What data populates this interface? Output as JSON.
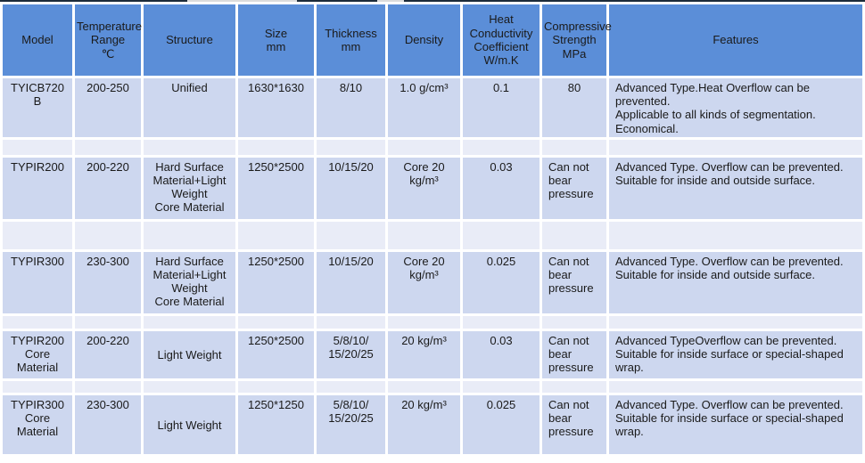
{
  "colors": {
    "header_bg": "#5b8ed8",
    "row_bg": "#cdd7ef",
    "band_bg": "#e9ecf7",
    "grid": "#ffffff",
    "text": "#1a1a1a",
    "top_line": "#1c2b3a"
  },
  "table": {
    "columns": [
      {
        "id": "model",
        "label": "Model"
      },
      {
        "id": "temperature-range",
        "label": "Temperature\nRange\n℃"
      },
      {
        "id": "structure",
        "label": "Structure"
      },
      {
        "id": "size",
        "label": "Size\nmm"
      },
      {
        "id": "thickness",
        "label": "Thickness\nmm"
      },
      {
        "id": "density",
        "label": "Density"
      },
      {
        "id": "heat-conductivity",
        "label": "Heat\nConductivity\nCoefficient\nW/m.K"
      },
      {
        "id": "compressive-strength",
        "label": "Compressive\nStrength\nMPa"
      },
      {
        "id": "features",
        "label": "Features"
      }
    ],
    "rows": [
      {
        "cells": [
          "TYICB720\nB",
          "200-250",
          "Unified",
          "1630*1630",
          "8/10",
          "1.0 g/cm³",
          "0.1",
          "80",
          "Advanced Type.Heat Overflow can be\nprevented.\nApplicable to all kinds of segmentation.\nEconomical."
        ]
      },
      {
        "cells": [
          "TYPIR200",
          "200-220",
          "Hard Surface\nMaterial+Light\nWeight\nCore Material",
          "1250*2500",
          "10/15/20",
          "Core 20\nkg/m³",
          "0.03",
          "Can not\nbear\npressure",
          "Advanced Type. Overflow can be prevented.\nSuitable for inside and outside surface."
        ]
      },
      {
        "cells": [
          "TYPIR300",
          "230-300",
          "Hard Surface\nMaterial+Light\nWeight\nCore Material",
          "1250*2500",
          "10/15/20",
          "Core 20\nkg/m³",
          "0.025",
          "Can not\nbear\npressure",
          "Advanced Type. Overflow can be prevented.\nSuitable for inside and outside surface."
        ]
      },
      {
        "cells": [
          "TYPIR200\nCore\nMaterial",
          "200-220",
          "Light Weight",
          "1250*2500",
          "5/8/10/\n15/20/25",
          "20 kg/m³",
          "0.03",
          "Can not\nbear\npressure",
          "Advanced TypeOverflow can be prevented.\nSuitable for inside surface or special-shaped\nwrap."
        ]
      },
      {
        "cells": [
          "TYPIR300\nCore\nMaterial",
          "230-300",
          "Light Weight",
          "1250*1250",
          "5/8/10/\n15/20/25",
          "20 kg/m³",
          "0.025",
          "Can not\nbear\npressure",
          "Advanced Type. Overflow can be prevented.\nSuitable for inside surface or special-shaped\nwrap."
        ]
      }
    ]
  }
}
